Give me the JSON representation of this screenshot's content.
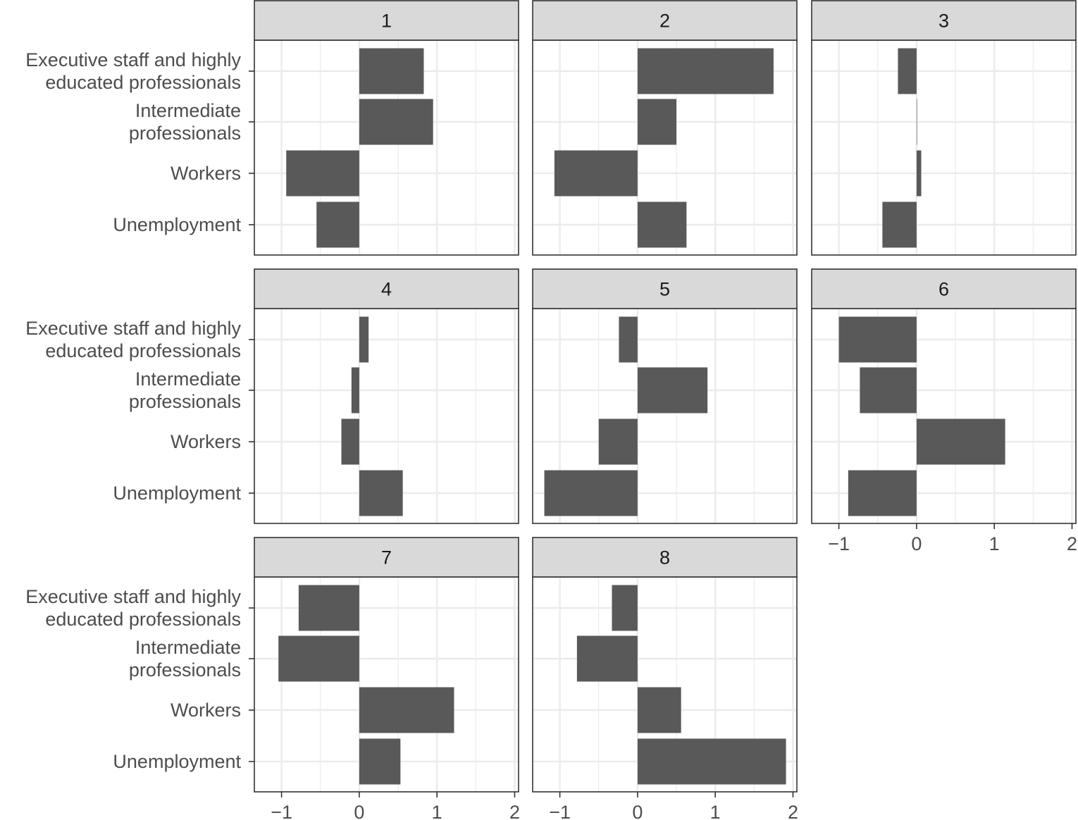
{
  "chart_data": {
    "type": "bar",
    "orientation": "horizontal",
    "facet_layout": "3 columns x 3 rows",
    "categories": [
      [
        "Executive staff and highly",
        "educated professionals"
      ],
      [
        "Intermediate",
        "professionals"
      ],
      [
        "Workers"
      ],
      [
        "Unemployment"
      ]
    ],
    "xlim": [
      -1.35,
      2.05
    ],
    "x_ticks": [
      -1,
      0,
      1,
      2
    ],
    "x_tick_labels": [
      "−1",
      "0",
      "1",
      "2"
    ],
    "grid": true,
    "bar_color": "#595959",
    "strip_color": "#d9d9d9",
    "grid_color": "#ebebeb",
    "panels": [
      {
        "label": "1",
        "values": [
          0.83,
          0.95,
          -0.94,
          -0.55
        ]
      },
      {
        "label": "2",
        "values": [
          1.75,
          0.5,
          -1.07,
          0.63
        ]
      },
      {
        "label": "3",
        "values": [
          -0.24,
          0.0,
          0.06,
          -0.44
        ]
      },
      {
        "label": "4",
        "values": [
          0.12,
          -0.1,
          -0.23,
          0.56
        ]
      },
      {
        "label": "5",
        "values": [
          -0.24,
          0.9,
          -0.5,
          -1.2
        ]
      },
      {
        "label": "6",
        "values": [
          -1.0,
          -0.73,
          1.14,
          -0.88
        ]
      },
      {
        "label": "7",
        "values": [
          -0.78,
          -1.04,
          1.22,
          0.53
        ]
      },
      {
        "label": "8",
        "values": [
          -0.33,
          -0.78,
          0.56,
          1.91
        ]
      }
    ]
  }
}
